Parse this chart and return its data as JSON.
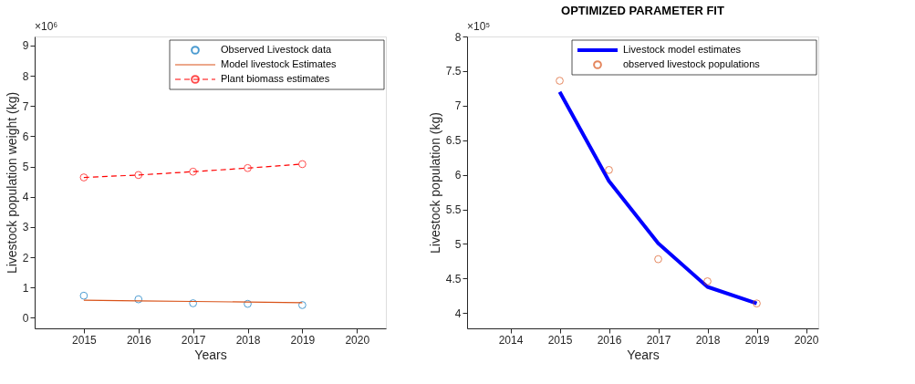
{
  "chart_data": [
    {
      "type": "line",
      "xlabel": "Years",
      "ylabel": "Livestock population weight (kg)",
      "annotations": [
        "×10⁶"
      ],
      "x": [
        2015,
        2016,
        2017,
        2018,
        2019
      ],
      "xlim": [
        2014.1,
        2020.53
      ],
      "xticks": [
        2015,
        2016,
        2017,
        2018,
        2019,
        2020
      ],
      "ylim": [
        -0.35,
        9.3
      ],
      "yticks": [
        0,
        1,
        2,
        3,
        4,
        5,
        6,
        7,
        8,
        9
      ],
      "grid": false,
      "legend": "top right",
      "series": [
        {
          "name": "Observed Livestock data",
          "type": "scatter",
          "marker": "circle",
          "color": "#0072bd",
          "values": [
            0.73,
            0.61,
            0.48,
            0.46,
            0.42
          ]
        },
        {
          "name": "Model livestock Estimates",
          "marker": "none",
          "line_style": "solid",
          "color": "#d95319",
          "values": [
            0.58,
            0.56,
            0.54,
            0.52,
            0.5
          ]
        },
        {
          "name": "Plant biomass estimates",
          "marker": "circle",
          "line_style": "dashed",
          "color": "#ff0000",
          "values": [
            4.64,
            4.72,
            4.83,
            4.95,
            5.08
          ]
        }
      ]
    },
    {
      "type": "line",
      "title": "OPTIMIZED PARAMETER FIT",
      "xlabel": "Years",
      "ylabel": "Livestock population (kg)",
      "annotations": [
        "×10⁵"
      ],
      "x": [
        2015,
        2016,
        2017,
        2018,
        2019
      ],
      "xlim": [
        2013.12,
        2020.25
      ],
      "xticks": [
        2014,
        2015,
        2016,
        2017,
        2018,
        2019,
        2020
      ],
      "ylim": [
        3.78,
        8
      ],
      "yticks": [
        {
          "value": 4,
          "label": "4"
        },
        4.5,
        {
          "value": 5,
          "label": "5"
        },
        5.5,
        {
          "value": 6,
          "label": "6"
        },
        6.5,
        {
          "value": 7,
          "label": "7"
        },
        7.5,
        {
          "value": 8,
          "label": "8"
        }
      ],
      "grid": false,
      "legend": "top right",
      "series": [
        {
          "name": "Livestock model estimates",
          "marker": "none",
          "line_style": "solid",
          "color": "#0000ff",
          "values": [
            7.2,
            5.91,
            5.01,
            4.38,
            4.14
          ]
        },
        {
          "name": "observed livestock populations",
          "type": "scatter",
          "marker": "circle",
          "color": "#d95319",
          "values": [
            7.36,
            6.07,
            4.78,
            4.46,
            4.14
          ]
        }
      ]
    }
  ]
}
